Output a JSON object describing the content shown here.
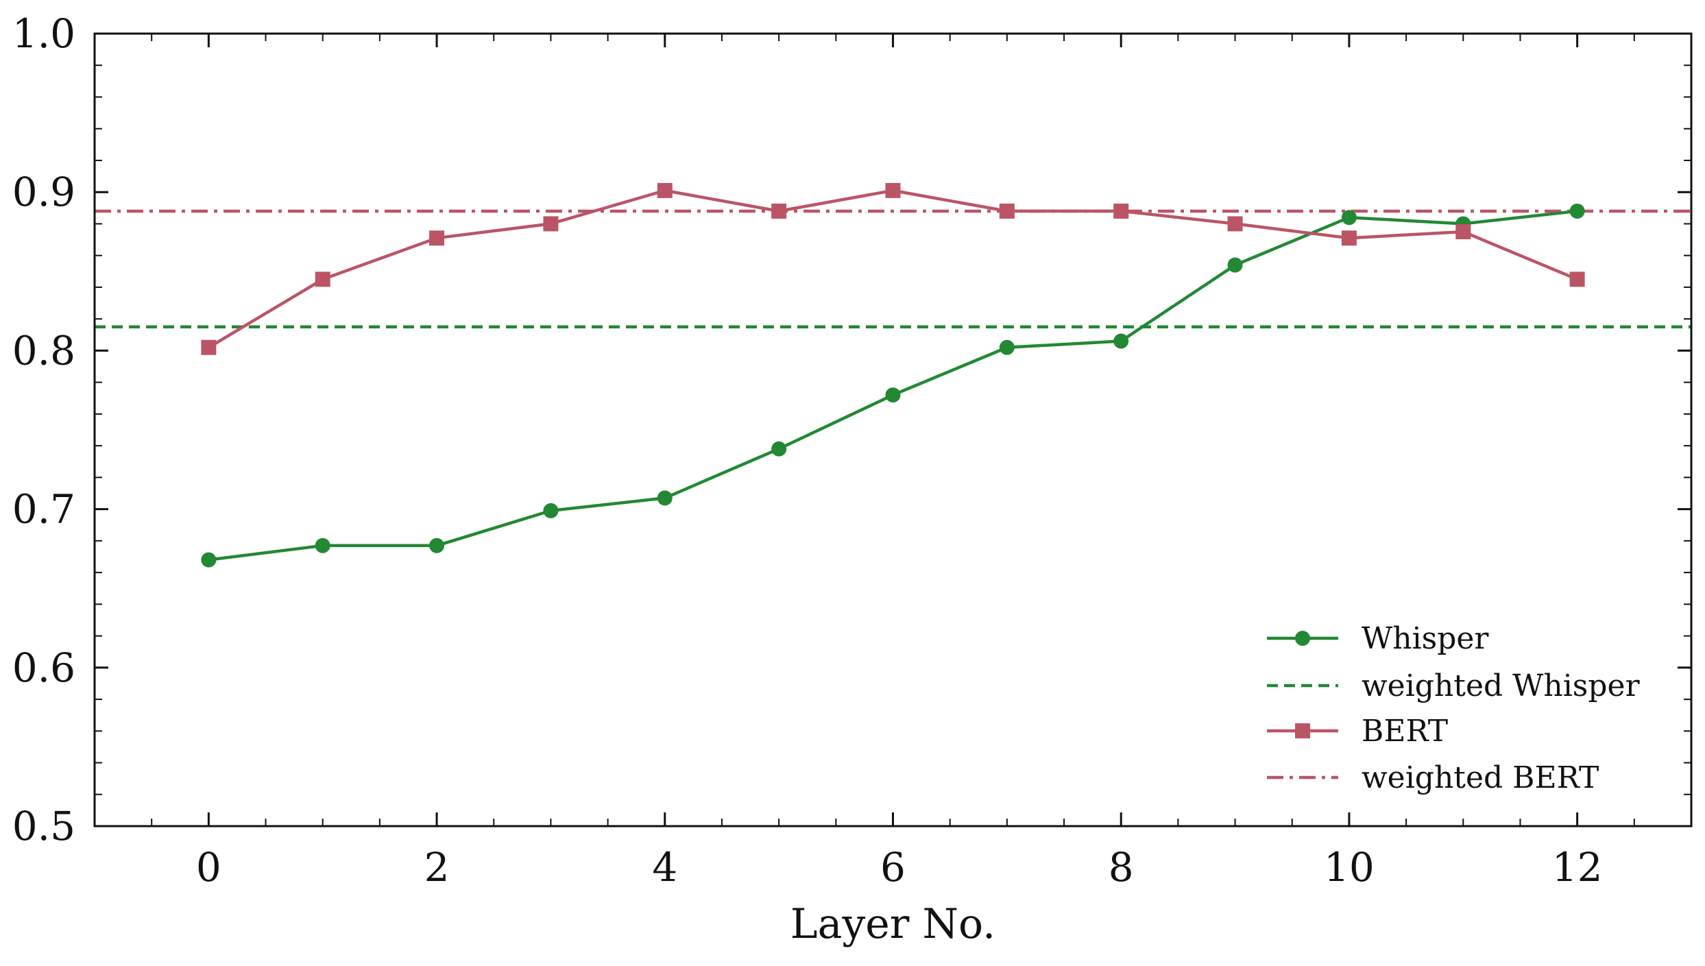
{
  "chart_data": {
    "type": "line",
    "title": "",
    "xlabel": "Layer No.",
    "ylabel": "",
    "xlim": [
      -1,
      13
    ],
    "ylim": [
      0.5,
      1.0
    ],
    "x_ticks": [
      0,
      2,
      4,
      6,
      8,
      10,
      12
    ],
    "x_tick_labels": [
      "0",
      "2",
      "4",
      "6",
      "8",
      "10",
      "12"
    ],
    "y_ticks": [
      0.5,
      0.6,
      0.7,
      0.8,
      0.9,
      1.0
    ],
    "y_tick_labels": [
      "0.5",
      "0.6",
      "0.7",
      "0.8",
      "0.9",
      "1.0"
    ],
    "grid": false,
    "legend_position": "bottom-right",
    "x": [
      0,
      1,
      2,
      3,
      4,
      5,
      6,
      7,
      8,
      9,
      10,
      11,
      12
    ],
    "series": [
      {
        "name": "Whisper",
        "color": "#228833",
        "marker": "circle",
        "line_style": "solid",
        "values": [
          0.668,
          0.677,
          0.677,
          0.699,
          0.707,
          0.738,
          0.772,
          0.802,
          0.806,
          0.854,
          0.884,
          0.88,
          0.888
        ]
      },
      {
        "name": "BERT",
        "color": "#BB5566",
        "marker": "square",
        "line_style": "solid",
        "values": [
          0.802,
          0.845,
          0.871,
          0.88,
          0.901,
          0.888,
          0.901,
          0.888,
          0.888,
          0.88,
          0.871,
          0.875,
          0.845
        ]
      }
    ],
    "reference_lines": [
      {
        "name": "weighted Whisper",
        "color": "#228833",
        "line_style": "dashed",
        "value": 0.815
      },
      {
        "name": "weighted BERT",
        "color": "#BB5566",
        "line_style": "dashdot",
        "value": 0.888
      }
    ],
    "legend": [
      {
        "label": "Whisper",
        "color": "#228833",
        "line_style": "solid",
        "marker": "circle"
      },
      {
        "label": "weighted Whisper",
        "color": "#228833",
        "line_style": "dashed",
        "marker": "none"
      },
      {
        "label": "BERT",
        "color": "#BB5566",
        "line_style": "solid",
        "marker": "square"
      },
      {
        "label": "weighted BERT",
        "color": "#BB5566",
        "line_style": "dashdot",
        "marker": "none"
      }
    ]
  }
}
